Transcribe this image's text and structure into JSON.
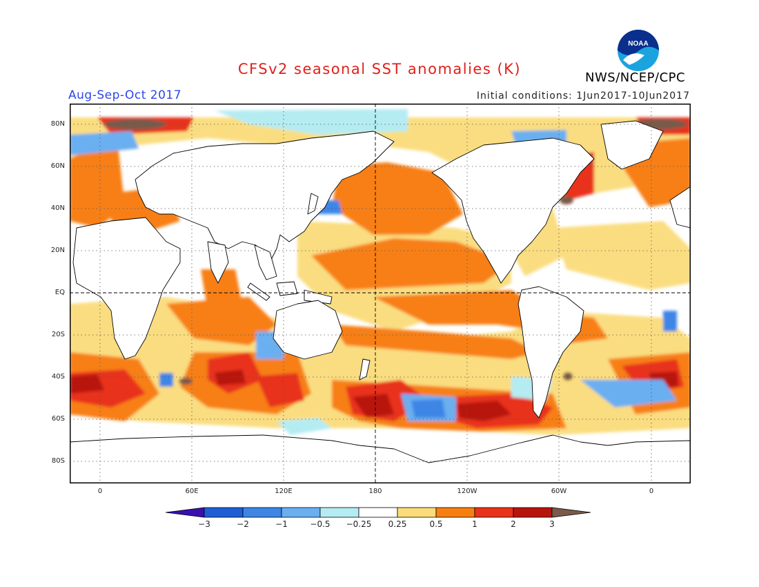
{
  "header": {
    "title": "CFSv2 seasonal SST anomalies (K)",
    "agency": "NWS/NCEP/CPC",
    "logo_text": "NOAA",
    "period": "Aug-Sep-Oct 2017",
    "initial_conditions": "Initial conditions: 1Jun2017-10Jun2017"
  },
  "map": {
    "lat_labels": [
      "80N",
      "60N",
      "40N",
      "20N",
      "EQ",
      "20S",
      "40S",
      "60S",
      "80S"
    ],
    "lon_labels": [
      "0",
      "60E",
      "120E",
      "180",
      "120W",
      "60W",
      "0"
    ],
    "colors": {
      "land": "#ffffff",
      "near_zero": "#ffffff",
      "frame": "#000000"
    }
  },
  "colorbar": {
    "labels": [
      "−3",
      "−2",
      "−1",
      "−0.5",
      "−0.25",
      "0.25",
      "0.5",
      "1",
      "2",
      "3"
    ],
    "colors": [
      "#3a10b0",
      "#1f5fd6",
      "#3d86e6",
      "#6aaff0",
      "#b4ecf2",
      "#ffffff",
      "#fadc7a",
      "#f77f12",
      "#e8331a",
      "#b8140e",
      "#7a5a4a"
    ]
  }
}
